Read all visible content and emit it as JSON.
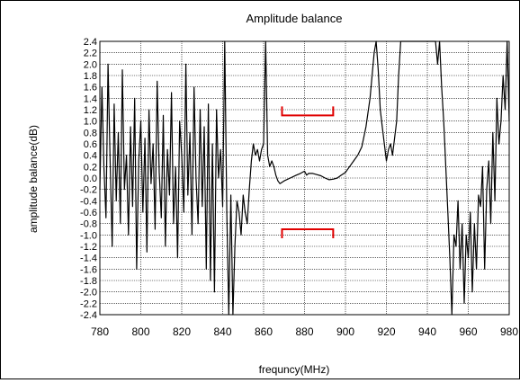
{
  "chart_data": {
    "type": "line",
    "title": "Amplitude balance",
    "xlabel": "frequncy(MHz)",
    "ylabel": "amplitude balance(dB)",
    "xlim": [
      780,
      980
    ],
    "ylim": [
      -2.4,
      2.4
    ],
    "x_ticks": [
      "780",
      "800",
      "820",
      "840",
      "860",
      "880",
      "900",
      "920",
      "940",
      "960",
      "980"
    ],
    "y_ticks": [
      "2.4",
      "2.2",
      "2.0",
      "1.8",
      "1.6",
      "1.4",
      "1.2",
      "1.0",
      "0.8",
      "0.6",
      "0.4",
      "0.2",
      "0.0",
      "-0.2",
      "-0.4",
      "-0.6",
      "-0.8",
      "-1.0",
      "-1.2",
      "-1.4",
      "-1.6",
      "-1.8",
      "-2.0",
      "-2.2",
      "-2.4"
    ],
    "grid": true,
    "series": [
      {
        "color": "#000000",
        "points": [
          [
            780,
            -0.2
          ],
          [
            781,
            1.6
          ],
          [
            782,
            0.2
          ],
          [
            783,
            -0.7
          ],
          [
            784,
            2.0
          ],
          [
            785,
            0.3
          ],
          [
            786,
            -1.2
          ],
          [
            787,
            1.3
          ],
          [
            788,
            -0.4
          ],
          [
            789,
            0.8
          ],
          [
            790,
            -0.8
          ],
          [
            791,
            1.9
          ],
          [
            792,
            -0.2
          ],
          [
            793,
            0.4
          ],
          [
            794,
            -1.0
          ],
          [
            795,
            0.9
          ],
          [
            796,
            -0.5
          ],
          [
            797,
            1.4
          ],
          [
            798,
            -1.6
          ],
          [
            799,
            0.3
          ],
          [
            800,
            1.0
          ],
          [
            801,
            -0.6
          ],
          [
            802,
            0.7
          ],
          [
            803,
            -1.3
          ],
          [
            804,
            1.2
          ],
          [
            805,
            -0.1
          ],
          [
            806,
            0.6
          ],
          [
            807,
            -0.9
          ],
          [
            808,
            1.7
          ],
          [
            809,
            0.1
          ],
          [
            810,
            -0.7
          ],
          [
            811,
            1.1
          ],
          [
            812,
            -1.2
          ],
          [
            813,
            0.5
          ],
          [
            814,
            -0.3
          ],
          [
            815,
            1.5
          ],
          [
            816,
            -0.8
          ],
          [
            817,
            0.2
          ],
          [
            818,
            -1.4
          ],
          [
            819,
            1.0
          ],
          [
            820,
            0.4
          ],
          [
            821,
            -0.6
          ],
          [
            822,
            2.0
          ],
          [
            823,
            -0.3
          ],
          [
            824,
            0.8
          ],
          [
            825,
            -1.0
          ],
          [
            826,
            1.6
          ],
          [
            827,
            0.0
          ],
          [
            828,
            -0.8
          ],
          [
            829,
            1.2
          ],
          [
            830,
            -0.5
          ],
          [
            831,
            0.9
          ],
          [
            832,
            -1.6
          ],
          [
            833,
            1.3
          ],
          [
            834,
            -1.8
          ],
          [
            835,
            0.6
          ],
          [
            836,
            -2.0
          ],
          [
            837,
            1.2
          ],
          [
            838,
            0.0
          ],
          [
            839,
            0.5
          ],
          [
            840,
            -0.5
          ],
          [
            841,
            2.4
          ],
          [
            842,
            -0.6
          ],
          [
            843,
            -2.4
          ],
          [
            844,
            -0.3
          ],
          [
            845,
            -2.4
          ],
          [
            846,
            -1.2
          ],
          [
            847,
            -0.4
          ],
          [
            848,
            -0.6
          ],
          [
            849,
            -1.0
          ],
          [
            850,
            -0.3
          ],
          [
            851,
            -0.6
          ],
          [
            852,
            -0.8
          ],
          [
            853,
            -0.2
          ],
          [
            854,
            0.3
          ],
          [
            855,
            0.6
          ],
          [
            856,
            0.4
          ],
          [
            857,
            0.5
          ],
          [
            858,
            0.3
          ],
          [
            859,
            0.5
          ],
          [
            860,
            0.6
          ],
          [
            861,
            2.4
          ],
          [
            862,
            0.4
          ],
          [
            863,
            0.2
          ],
          [
            864,
            0.3
          ],
          [
            865,
            0.2
          ],
          [
            866,
            0.05
          ],
          [
            867,
            -0.05
          ],
          [
            868,
            -0.1
          ],
          [
            870,
            -0.05
          ],
          [
            873,
            0.0
          ],
          [
            876,
            0.05
          ],
          [
            878,
            0.08
          ],
          [
            880,
            0.12
          ],
          [
            881,
            0.05
          ],
          [
            882,
            0.08
          ],
          [
            884,
            0.08
          ],
          [
            886,
            0.06
          ],
          [
            888,
            0.04
          ],
          [
            890,
            0.0
          ],
          [
            892,
            -0.03
          ],
          [
            894,
            -0.02
          ],
          [
            896,
            0.0
          ],
          [
            898,
            0.05
          ],
          [
            900,
            0.1
          ],
          [
            902,
            0.2
          ],
          [
            904,
            0.3
          ],
          [
            906,
            0.4
          ],
          [
            908,
            0.55
          ],
          [
            910,
            0.9
          ],
          [
            912,
            1.4
          ],
          [
            914,
            2.2
          ],
          [
            915,
            2.4
          ],
          [
            916,
            1.9
          ],
          [
            917,
            1.2
          ],
          [
            918,
            0.9
          ],
          [
            919,
            0.6
          ],
          [
            920,
            0.3
          ],
          [
            921,
            0.5
          ],
          [
            922,
            0.6
          ],
          [
            923,
            0.4
          ],
          [
            924,
            0.7
          ],
          [
            925,
            1.0
          ],
          [
            926,
            1.8
          ],
          [
            927,
            2.4
          ],
          [
            944,
            2.4
          ],
          [
            945,
            2.0
          ],
          [
            946,
            2.4
          ],
          [
            947,
            1.6
          ],
          [
            948,
            1.0
          ],
          [
            949,
            0.2
          ],
          [
            950,
            -0.6
          ],
          [
            951,
            -1.4
          ],
          [
            952,
            -2.4
          ],
          [
            953,
            -1.0
          ],
          [
            954,
            -1.2
          ],
          [
            955,
            -0.4
          ],
          [
            956,
            -1.6
          ],
          [
            957,
            -0.8
          ],
          [
            958,
            -2.2
          ],
          [
            959,
            -1.0
          ],
          [
            960,
            -1.4
          ],
          [
            961,
            -0.6
          ],
          [
            962,
            -2.0
          ],
          [
            963,
            -0.8
          ],
          [
            964,
            -1.6
          ],
          [
            965,
            -0.3
          ],
          [
            966,
            -0.5
          ],
          [
            967,
            0.2
          ],
          [
            968,
            -1.6
          ],
          [
            969,
            -0.2
          ],
          [
            970,
            0.3
          ],
          [
            971,
            -0.8
          ],
          [
            972,
            0.8
          ],
          [
            973,
            -0.4
          ],
          [
            974,
            1.4
          ],
          [
            975,
            0.6
          ],
          [
            976,
            1.0
          ],
          [
            977,
            1.8
          ],
          [
            978,
            1.2
          ],
          [
            979,
            2.4
          ],
          [
            980,
            1.0
          ]
        ]
      }
    ],
    "spec_brackets": [
      {
        "color": "#e00000",
        "x": [
          869,
          894
        ],
        "y": 1.1,
        "tick_direction": "up"
      },
      {
        "color": "#e00000",
        "x": [
          869,
          894
        ],
        "y": -0.9,
        "tick_direction": "down"
      }
    ]
  }
}
